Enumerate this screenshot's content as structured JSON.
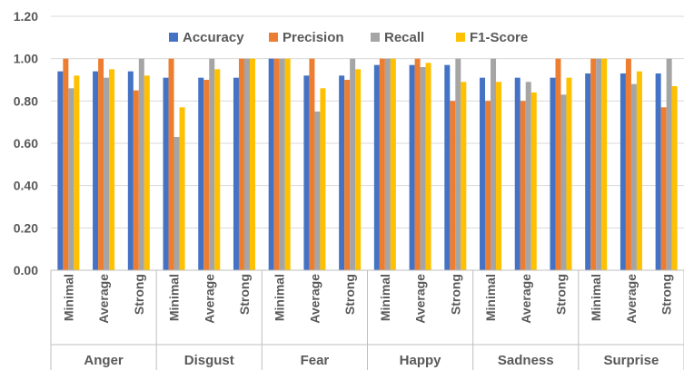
{
  "chart_data": {
    "type": "bar",
    "title": "",
    "xlabel": "",
    "ylabel": "",
    "ylim": [
      0,
      1.2
    ],
    "yticks": [
      "0.00",
      "0.20",
      "0.40",
      "0.60",
      "0.80",
      "1.00",
      "1.20"
    ],
    "grid": true,
    "legend_position": "top",
    "groups": [
      {
        "label": "Anger",
        "categories": [
          "Minimal",
          "Average",
          "Strong"
        ]
      },
      {
        "label": "Disgust",
        "categories": [
          "Minimal",
          "Average",
          "Strong"
        ]
      },
      {
        "label": "Fear",
        "categories": [
          "Minimal",
          "Average",
          "Strong"
        ]
      },
      {
        "label": "Happy",
        "categories": [
          "Minimal",
          "Average",
          "Strong"
        ]
      },
      {
        "label": "Sadness",
        "categories": [
          "Minimal",
          "Average",
          "Strong"
        ]
      },
      {
        "label": "Surprise",
        "categories": [
          "Minimal",
          "Average",
          "Strong"
        ]
      }
    ],
    "series": [
      {
        "name": "Accuracy",
        "color": "#4472c4",
        "values": [
          0.94,
          0.94,
          0.94,
          0.91,
          0.91,
          0.91,
          1.0,
          0.92,
          0.92,
          0.97,
          0.97,
          0.97,
          0.91,
          0.91,
          0.91,
          0.93,
          0.93,
          0.93
        ]
      },
      {
        "name": "Precision",
        "color": "#ed7d31",
        "values": [
          1.0,
          1.0,
          0.85,
          1.0,
          0.9,
          1.0,
          1.0,
          1.0,
          0.9,
          1.0,
          1.0,
          0.8,
          0.8,
          0.8,
          1.0,
          1.0,
          1.0,
          0.77
        ]
      },
      {
        "name": "Recall",
        "color": "#a5a5a5",
        "values": [
          0.86,
          0.91,
          1.0,
          0.63,
          1.0,
          1.0,
          1.0,
          0.75,
          1.0,
          1.0,
          0.96,
          1.0,
          1.0,
          0.89,
          0.83,
          1.0,
          0.88,
          1.0
        ]
      },
      {
        "name": "F1-Score",
        "color": "#ffc000",
        "values": [
          0.92,
          0.95,
          0.92,
          0.77,
          0.95,
          1.0,
          1.0,
          0.86,
          0.95,
          1.0,
          0.98,
          0.89,
          0.89,
          0.84,
          0.91,
          1.0,
          0.94,
          0.87
        ]
      }
    ]
  }
}
